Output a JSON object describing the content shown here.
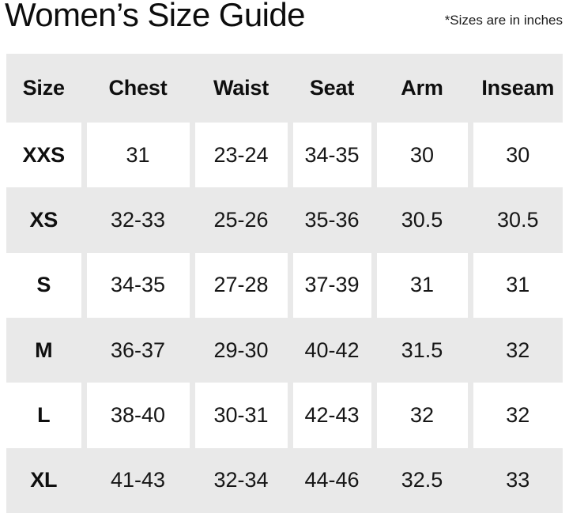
{
  "header": {
    "title": "Women’s Size Guide",
    "note": "*Sizes are in inches"
  },
  "chart_data": {
    "type": "table",
    "title": "Women’s Size Guide",
    "note": "*Sizes are in inches",
    "units": "inches",
    "columns": [
      "Size",
      "Chest",
      "Waist",
      "Seat",
      "Arm",
      "Inseam"
    ],
    "rows": [
      [
        "XXS",
        "31",
        "23-24",
        "34-35",
        "30",
        "30"
      ],
      [
        "XS",
        "32-33",
        "25-26",
        "35-36",
        "30.5",
        "30.5"
      ],
      [
        "S",
        "34-35",
        "27-28",
        "37-39",
        "31",
        "31"
      ],
      [
        "M",
        "36-37",
        "29-30",
        "40-42",
        "31.5",
        "32"
      ],
      [
        "L",
        "38-40",
        "30-31",
        "42-43",
        "32",
        "32"
      ],
      [
        "XL",
        "41-43",
        "32-34",
        "44-46",
        "32.5",
        "33"
      ]
    ],
    "layout": {
      "header_background": "#e9e9e9",
      "row_shade_pattern": [
        "white",
        "shaded",
        "white",
        "shaded",
        "white",
        "shaded"
      ],
      "gridlines": "gray gutters between cells on white rows only"
    }
  },
  "colors": {
    "row_shade": "#e9e9e9",
    "page_bg": "#ffffff",
    "text": "#121212"
  }
}
